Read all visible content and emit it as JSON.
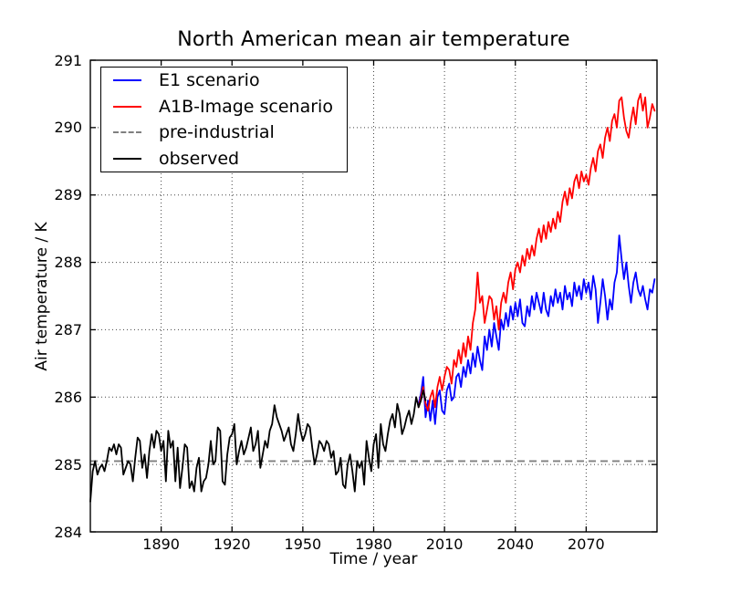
{
  "chart_data": {
    "type": "line",
    "title": "North American mean air temperature",
    "xlabel": "Time / year",
    "ylabel": "Air temperature / K",
    "xlim": [
      1860,
      2100
    ],
    "ylim": [
      284,
      291
    ],
    "x_ticks": [
      1890,
      1920,
      1950,
      1980,
      2010,
      2040,
      2070
    ],
    "y_ticks": [
      284,
      285,
      286,
      287,
      288,
      289,
      290,
      291
    ],
    "grid": "dotted, major, both axes",
    "legend_position": "upper left",
    "frame_color": "#000000",
    "background_color": "#ffffff",
    "series": [
      {
        "name": "E1 scenario",
        "color": "#0000ff",
        "style": "solid",
        "start_year": 1999,
        "step": 1,
        "values": [
          285.9,
          286.05,
          286.3,
          285.7,
          285.95,
          285.65,
          285.95,
          285.6,
          286.0,
          286.1,
          285.8,
          285.75,
          286.1,
          286.2,
          285.95,
          286.0,
          286.3,
          286.35,
          286.15,
          286.45,
          286.3,
          286.55,
          286.35,
          286.65,
          286.45,
          286.75,
          286.55,
          286.4,
          286.9,
          286.7,
          287.0,
          286.75,
          287.1,
          286.9,
          286.7,
          287.15,
          287.0,
          287.25,
          287.05,
          287.35,
          287.15,
          287.4,
          287.2,
          287.45,
          287.1,
          287.05,
          287.35,
          287.2,
          287.5,
          287.3,
          287.55,
          287.4,
          287.25,
          287.55,
          287.3,
          287.2,
          287.5,
          287.35,
          287.6,
          287.4,
          287.55,
          287.3,
          287.65,
          287.45,
          287.55,
          287.35,
          287.7,
          287.5,
          287.65,
          287.45,
          287.75,
          287.55,
          287.7,
          287.45,
          287.8,
          287.6,
          287.1,
          287.4,
          287.75,
          287.5,
          287.15,
          287.45,
          287.3,
          287.7,
          287.85,
          288.4,
          288.05,
          287.75,
          288.0,
          287.65,
          287.4,
          287.7,
          287.85,
          287.6,
          287.5,
          287.65,
          287.45,
          287.3,
          287.6,
          287.55,
          287.75
        ]
      },
      {
        "name": "A1B-Image scenario",
        "color": "#ff0000",
        "style": "solid",
        "start_year": 1999,
        "step": 1,
        "values": [
          285.85,
          286.0,
          286.15,
          285.9,
          285.8,
          286.0,
          286.1,
          285.85,
          286.15,
          286.3,
          286.1,
          286.3,
          286.45,
          286.4,
          286.2,
          286.55,
          286.45,
          286.7,
          286.5,
          286.8,
          286.6,
          286.9,
          286.7,
          287.1,
          287.3,
          287.85,
          287.4,
          287.5,
          287.1,
          287.3,
          287.5,
          287.45,
          287.15,
          287.35,
          287.0,
          287.4,
          287.55,
          287.4,
          287.7,
          287.85,
          287.6,
          287.9,
          288.0,
          287.85,
          288.1,
          287.95,
          288.2,
          288.05,
          288.25,
          288.1,
          288.35,
          288.5,
          288.3,
          288.55,
          288.35,
          288.6,
          288.45,
          288.65,
          288.5,
          288.75,
          288.6,
          288.9,
          289.05,
          288.85,
          289.1,
          288.95,
          289.2,
          289.3,
          289.1,
          289.35,
          289.2,
          289.3,
          289.15,
          289.4,
          289.55,
          289.35,
          289.65,
          289.75,
          289.55,
          289.85,
          290.0,
          289.8,
          290.1,
          290.2,
          290.0,
          290.4,
          290.45,
          290.15,
          289.95,
          289.85,
          290.1,
          290.3,
          290.05,
          290.4,
          290.5,
          290.25,
          290.45,
          290.0,
          290.15,
          290.35,
          290.25
        ]
      },
      {
        "name": "pre-industrial",
        "color": "#7f7f7f",
        "style": "dashed",
        "constant_value": 285.05,
        "x_range": [
          1860,
          2100
        ]
      },
      {
        "name": "observed",
        "color": "#000000",
        "style": "solid",
        "start_year": 1860,
        "step": 1,
        "values": [
          284.45,
          284.9,
          285.05,
          284.85,
          284.95,
          285.0,
          284.9,
          285.05,
          285.25,
          285.2,
          285.3,
          285.15,
          285.3,
          285.25,
          284.85,
          284.95,
          285.05,
          285.0,
          284.75,
          285.1,
          285.4,
          285.35,
          284.95,
          285.15,
          284.8,
          285.2,
          285.45,
          285.25,
          285.5,
          285.45,
          285.2,
          285.35,
          284.75,
          285.5,
          285.25,
          285.35,
          284.75,
          285.25,
          284.65,
          284.95,
          285.3,
          285.25,
          284.65,
          284.75,
          284.6,
          284.95,
          285.1,
          284.6,
          284.75,
          284.8,
          285.0,
          285.35,
          285.0,
          285.05,
          285.55,
          285.5,
          284.75,
          284.7,
          285.15,
          285.4,
          285.45,
          285.6,
          285.0,
          285.2,
          285.35,
          285.15,
          285.25,
          285.4,
          285.55,
          285.2,
          285.3,
          285.5,
          284.95,
          285.15,
          285.35,
          285.25,
          285.5,
          285.6,
          285.88,
          285.7,
          285.6,
          285.5,
          285.35,
          285.45,
          285.55,
          285.3,
          285.2,
          285.45,
          285.75,
          285.5,
          285.35,
          285.45,
          285.6,
          285.55,
          285.25,
          285.0,
          285.15,
          285.35,
          285.3,
          285.2,
          285.35,
          285.3,
          285.1,
          285.2,
          284.85,
          284.9,
          285.1,
          284.7,
          284.65,
          285.0,
          285.15,
          284.9,
          284.6,
          285.05,
          284.95,
          285.05,
          284.7,
          285.35,
          285.1,
          284.9,
          285.3,
          285.45,
          284.95,
          285.6,
          285.3,
          285.2,
          285.45,
          285.65,
          285.75,
          285.55,
          285.9,
          285.75,
          285.45,
          285.55,
          285.7,
          285.8,
          285.6,
          285.75,
          286.0,
          285.85,
          285.95,
          286.1,
          285.95
        ]
      }
    ]
  }
}
